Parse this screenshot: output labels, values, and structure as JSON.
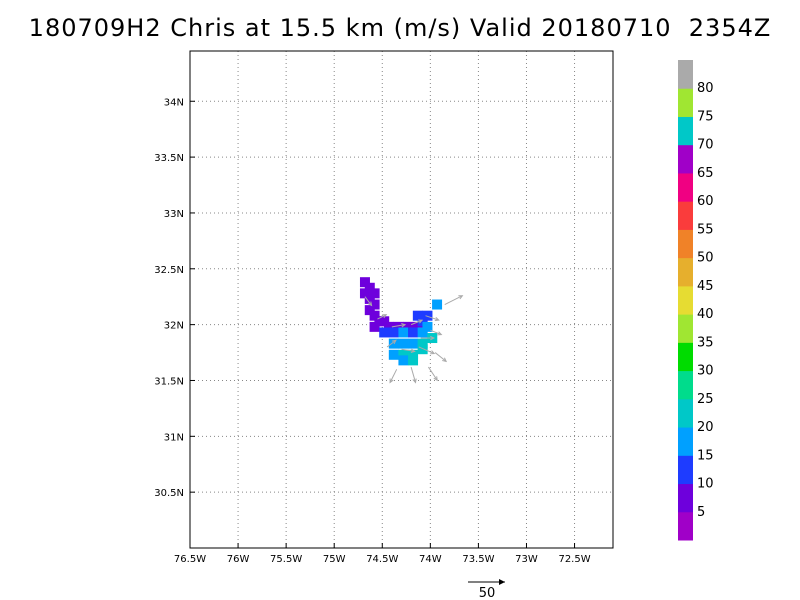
{
  "title": "180709H2 Chris at 15.5 km (m/s) Valid 20180710  2354Z",
  "chart_data": {
    "type": "map",
    "lon_range": [
      -76.5,
      -72.1
    ],
    "lat_range": [
      30.0,
      34.45
    ],
    "lon_ticks": [
      "76.5W",
      "76W",
      "75.5W",
      "75W",
      "74.5W",
      "74W",
      "73.5W",
      "73W",
      "72.5W"
    ],
    "lon_tick_values": [
      -76.5,
      -76.0,
      -75.5,
      -75.0,
      -74.5,
      -74.0,
      -73.5,
      -73.0,
      -72.5
    ],
    "lat_ticks": [
      "30.5N",
      "31N",
      "31.5N",
      "32N",
      "32.5N",
      "33N",
      "33.5N",
      "34N"
    ],
    "lat_tick_values": [
      30.5,
      31.0,
      31.5,
      32.0,
      32.5,
      33.0,
      33.5,
      34.0
    ],
    "grid": true,
    "colorbar": {
      "labels": [
        "5",
        "10",
        "15",
        "20",
        "25",
        "30",
        "35",
        "40",
        "45",
        "50",
        "55",
        "60",
        "65",
        "70",
        "75",
        "80"
      ],
      "colors": [
        "#a000c8",
        "#6e00dc",
        "#1e3cff",
        "#00a0ff",
        "#00c8c8",
        "#00dc8c",
        "#00dc00",
        "#a0e632",
        "#e6dc32",
        "#e6af2d",
        "#f08228",
        "#fa3c3c",
        "#f00082",
        "#a000c8",
        "#00c8c8",
        "#a0e632",
        "#aaaaaa"
      ]
    },
    "wind_cells": [
      {
        "lon": -74.68,
        "lat": 32.38,
        "speed": 5
      },
      {
        "lon": -74.63,
        "lat": 32.33,
        "speed": 5
      },
      {
        "lon": -74.68,
        "lat": 32.28,
        "speed": 5
      },
      {
        "lon": -74.58,
        "lat": 32.28,
        "speed": 5
      },
      {
        "lon": -74.63,
        "lat": 32.23,
        "speed": 5
      },
      {
        "lon": -74.58,
        "lat": 32.18,
        "speed": 5
      },
      {
        "lon": -74.63,
        "lat": 32.13,
        "speed": 5
      },
      {
        "lon": -74.58,
        "lat": 32.08,
        "speed": 5
      },
      {
        "lon": -74.53,
        "lat": 32.03,
        "speed": 5
      },
      {
        "lon": -74.48,
        "lat": 32.03,
        "speed": 5
      },
      {
        "lon": -74.58,
        "lat": 31.98,
        "speed": 5
      },
      {
        "lon": -74.43,
        "lat": 31.98,
        "speed": 5
      },
      {
        "lon": -74.33,
        "lat": 31.98,
        "speed": 5
      },
      {
        "lon": -74.23,
        "lat": 31.98,
        "speed": 5
      },
      {
        "lon": -74.13,
        "lat": 31.98,
        "speed": 5
      },
      {
        "lon": -74.08,
        "lat": 32.03,
        "speed": 10
      },
      {
        "lon": -74.13,
        "lat": 32.08,
        "speed": 10
      },
      {
        "lon": -74.03,
        "lat": 32.08,
        "speed": 10
      },
      {
        "lon": -73.93,
        "lat": 32.18,
        "speed": 15
      },
      {
        "lon": -74.48,
        "lat": 31.93,
        "speed": 10
      },
      {
        "lon": -74.38,
        "lat": 31.93,
        "speed": 10
      },
      {
        "lon": -74.28,
        "lat": 31.93,
        "speed": 15
      },
      {
        "lon": -74.18,
        "lat": 31.93,
        "speed": 10
      },
      {
        "lon": -74.08,
        "lat": 31.93,
        "speed": 15
      },
      {
        "lon": -74.03,
        "lat": 31.98,
        "speed": 15
      },
      {
        "lon": -74.38,
        "lat": 31.83,
        "speed": 15
      },
      {
        "lon": -74.28,
        "lat": 31.83,
        "speed": 15
      },
      {
        "lon": -74.18,
        "lat": 31.83,
        "speed": 15
      },
      {
        "lon": -74.08,
        "lat": 31.83,
        "speed": 20
      },
      {
        "lon": -73.98,
        "lat": 31.88,
        "speed": 20
      },
      {
        "lon": -74.38,
        "lat": 31.73,
        "speed": 15
      },
      {
        "lon": -74.28,
        "lat": 31.73,
        "speed": 20
      },
      {
        "lon": -74.18,
        "lat": 31.73,
        "speed": 20
      },
      {
        "lon": -74.08,
        "lat": 31.78,
        "speed": 20
      },
      {
        "lon": -74.28,
        "lat": 31.68,
        "speed": 15
      },
      {
        "lon": -74.18,
        "lat": 31.68,
        "speed": 20
      }
    ],
    "wind_vectors": [
      {
        "lon": -74.68,
        "lat": 32.25,
        "u": 3,
        "v": -4
      },
      {
        "lon": -74.55,
        "lat": 32.05,
        "u": 4,
        "v": 2
      },
      {
        "lon": -74.4,
        "lat": 31.98,
        "u": 6,
        "v": 1
      },
      {
        "lon": -74.2,
        "lat": 32.0,
        "u": 5,
        "v": 2
      },
      {
        "lon": -74.05,
        "lat": 32.08,
        "u": 6,
        "v": -2
      },
      {
        "lon": -73.85,
        "lat": 32.18,
        "u": 8,
        "v": 4
      },
      {
        "lon": -74.0,
        "lat": 31.95,
        "u": 5,
        "v": -2
      },
      {
        "lon": -74.45,
        "lat": 31.8,
        "u": 4,
        "v": 3
      },
      {
        "lon": -74.3,
        "lat": 31.78,
        "u": 6,
        "v": -1
      },
      {
        "lon": -74.12,
        "lat": 31.8,
        "u": 7,
        "v": -3
      },
      {
        "lon": -73.95,
        "lat": 31.75,
        "u": 5,
        "v": -4
      },
      {
        "lon": -74.35,
        "lat": 31.6,
        "u": -3,
        "v": -6
      },
      {
        "lon": -74.2,
        "lat": 31.62,
        "u": 2,
        "v": -7
      },
      {
        "lon": -74.02,
        "lat": 31.62,
        "u": 4,
        "v": -6
      },
      {
        "lon": -74.1,
        "lat": 31.88,
        "u": 6,
        "v": 0
      }
    ],
    "reference_vector": {
      "speed": 50,
      "label": "50"
    }
  }
}
